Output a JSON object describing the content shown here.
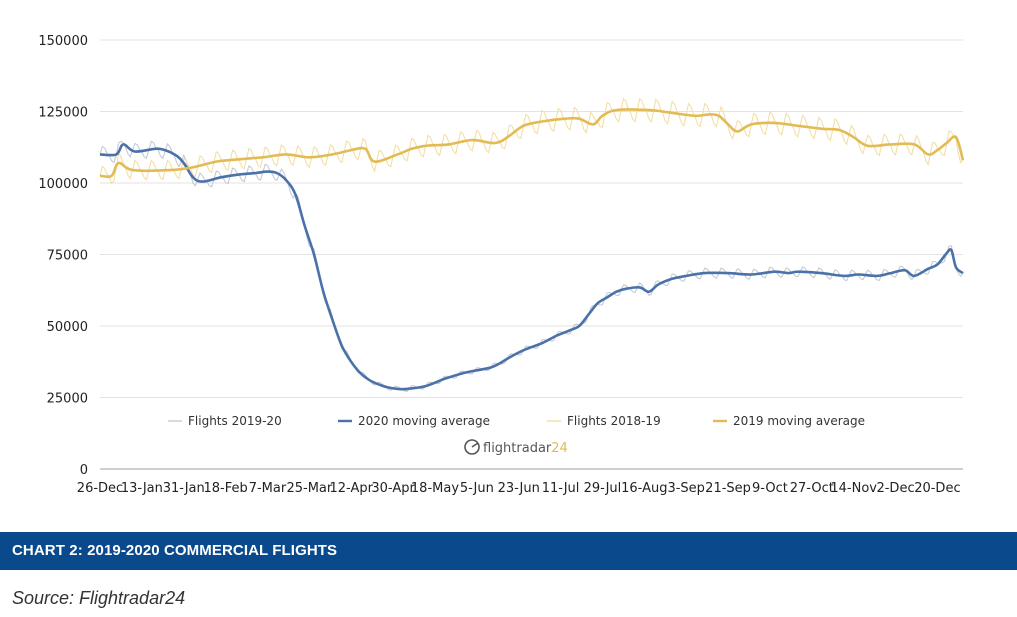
{
  "chart_data": {
    "type": "line",
    "title": "",
    "xlabel": "",
    "ylabel": "",
    "ylim": [
      0,
      150000
    ],
    "yticks": [
      "0",
      "25000",
      "50000",
      "75000",
      "100000",
      "125000",
      "150000"
    ],
    "xticks": [
      "26-Dec",
      "13-Jan",
      "31-Jan",
      "18-Feb",
      "7-Mar",
      "25-Mar",
      "12-Apr",
      "30-Apr",
      "18-May",
      "5-Jun",
      "23-Jun",
      "11-Jul",
      "29-Jul",
      "16-Aug",
      "3-Sep",
      "21-Sep",
      "9-Oct",
      "27-Oct",
      "14-Nov",
      "2-Dec",
      "20-Dec"
    ],
    "xlim": [
      0,
      371
    ],
    "grid": true,
    "legend_position": "bottom",
    "legend": [
      "Flights 2019-20",
      "2020 moving average",
      "Flights 2018-19",
      "2019 moving average"
    ],
    "colors": {
      "flights_2019_20": "#c5cad6",
      "ma_2020": "#4a72a8",
      "flights_2018_19": "#f3dfa4",
      "ma_2019": "#e2bb55"
    },
    "series": [
      {
        "name": "Flights 2019-20",
        "key": "flights_2019_20",
        "style": "thin",
        "base": [
          [
            0,
            110000
          ],
          [
            7,
            110000
          ],
          [
            10,
            113500
          ],
          [
            15,
            111000
          ],
          [
            25,
            112000
          ],
          [
            32,
            110000
          ],
          [
            36,
            107000
          ],
          [
            40,
            102000
          ],
          [
            44,
            100500
          ],
          [
            52,
            102000
          ],
          [
            60,
            103000
          ],
          [
            67,
            103500
          ],
          [
            72,
            104000
          ],
          [
            76,
            103500
          ],
          [
            80,
            101000
          ],
          [
            84,
            96000
          ],
          [
            88,
            85000
          ],
          [
            92,
            75000
          ],
          [
            96,
            62000
          ],
          [
            100,
            52000
          ],
          [
            104,
            43000
          ],
          [
            108,
            37500
          ],
          [
            112,
            33500
          ],
          [
            116,
            31000
          ],
          [
            120,
            29500
          ],
          [
            124,
            28500
          ],
          [
            128,
            28000
          ],
          [
            132,
            28000
          ],
          [
            140,
            29000
          ],
          [
            148,
            31500
          ],
          [
            156,
            33500
          ],
          [
            162,
            34500
          ],
          [
            168,
            35500
          ],
          [
            172,
            37000
          ],
          [
            176,
            39000
          ],
          [
            182,
            41500
          ],
          [
            190,
            44000
          ],
          [
            196,
            46500
          ],
          [
            202,
            48500
          ],
          [
            206,
            50000
          ],
          [
            210,
            54000
          ],
          [
            214,
            58000
          ],
          [
            218,
            60000
          ],
          [
            222,
            62000
          ],
          [
            226,
            63000
          ],
          [
            232,
            63500
          ],
          [
            236,
            62000
          ],
          [
            240,
            64500
          ],
          [
            246,
            66500
          ],
          [
            252,
            67500
          ],
          [
            260,
            68500
          ],
          [
            270,
            68500
          ],
          [
            280,
            68000
          ],
          [
            290,
            69000
          ],
          [
            296,
            68500
          ],
          [
            300,
            69000
          ],
          [
            310,
            68500
          ],
          [
            320,
            67500
          ],
          [
            326,
            68000
          ],
          [
            334,
            67500
          ],
          [
            340,
            68500
          ],
          [
            346,
            69500
          ],
          [
            350,
            67500
          ],
          [
            356,
            70000
          ],
          [
            360,
            71500
          ],
          [
            364,
            75500
          ],
          [
            366,
            76500
          ],
          [
            368,
            70500
          ],
          [
            371,
            68500
          ]
        ],
        "amplitude": 2800
      },
      {
        "name": "2020 moving average",
        "key": "ma_2020",
        "style": "thick",
        "points": [
          [
            0,
            110000
          ],
          [
            7,
            110000
          ],
          [
            10,
            113500
          ],
          [
            15,
            111000
          ],
          [
            25,
            112000
          ],
          [
            32,
            110000
          ],
          [
            36,
            107000
          ],
          [
            40,
            102000
          ],
          [
            44,
            100500
          ],
          [
            52,
            102000
          ],
          [
            60,
            103000
          ],
          [
            67,
            103500
          ],
          [
            72,
            104000
          ],
          [
            76,
            103500
          ],
          [
            80,
            101000
          ],
          [
            84,
            96000
          ],
          [
            88,
            85000
          ],
          [
            92,
            75000
          ],
          [
            96,
            62000
          ],
          [
            100,
            52000
          ],
          [
            104,
            43000
          ],
          [
            108,
            37500
          ],
          [
            112,
            33500
          ],
          [
            116,
            31000
          ],
          [
            120,
            29500
          ],
          [
            124,
            28500
          ],
          [
            128,
            28000
          ],
          [
            132,
            28000
          ],
          [
            140,
            29000
          ],
          [
            148,
            31500
          ],
          [
            156,
            33500
          ],
          [
            162,
            34500
          ],
          [
            168,
            35500
          ],
          [
            172,
            37000
          ],
          [
            176,
            39000
          ],
          [
            182,
            41500
          ],
          [
            190,
            44000
          ],
          [
            196,
            46500
          ],
          [
            202,
            48500
          ],
          [
            206,
            50000
          ],
          [
            210,
            54000
          ],
          [
            214,
            58000
          ],
          [
            218,
            60000
          ],
          [
            222,
            62000
          ],
          [
            226,
            63000
          ],
          [
            232,
            63500
          ],
          [
            236,
            62000
          ],
          [
            240,
            64500
          ],
          [
            246,
            66500
          ],
          [
            252,
            67500
          ],
          [
            260,
            68500
          ],
          [
            270,
            68500
          ],
          [
            280,
            68000
          ],
          [
            290,
            69000
          ],
          [
            296,
            68500
          ],
          [
            300,
            69000
          ],
          [
            310,
            68500
          ],
          [
            320,
            67500
          ],
          [
            326,
            68000
          ],
          [
            334,
            67500
          ],
          [
            340,
            68500
          ],
          [
            346,
            69500
          ],
          [
            350,
            67500
          ],
          [
            356,
            70000
          ],
          [
            360,
            71500
          ],
          [
            364,
            75500
          ],
          [
            366,
            76500
          ],
          [
            368,
            70500
          ],
          [
            371,
            68500
          ]
        ]
      },
      {
        "name": "Flights 2018-19",
        "key": "flights_2018_19",
        "style": "thin",
        "base": [
          [
            0,
            102500
          ],
          [
            5,
            102500
          ],
          [
            8,
            107000
          ],
          [
            14,
            104500
          ],
          [
            30,
            104500
          ],
          [
            40,
            105500
          ],
          [
            50,
            107500
          ],
          [
            56,
            108000
          ],
          [
            70,
            109000
          ],
          [
            80,
            110000
          ],
          [
            90,
            109000
          ],
          [
            100,
            110000
          ],
          [
            108,
            111500
          ],
          [
            114,
            112000
          ],
          [
            118,
            107500
          ],
          [
            128,
            110000
          ],
          [
            134,
            112000
          ],
          [
            140,
            113000
          ],
          [
            150,
            113500
          ],
          [
            160,
            115000
          ],
          [
            170,
            114000
          ],
          [
            176,
            116500
          ],
          [
            182,
            120000
          ],
          [
            190,
            121500
          ],
          [
            200,
            122500
          ],
          [
            206,
            122500
          ],
          [
            212,
            120500
          ],
          [
            216,
            123500
          ],
          [
            222,
            125500
          ],
          [
            236,
            125500
          ],
          [
            246,
            124500
          ],
          [
            256,
            123500
          ],
          [
            262,
            124000
          ],
          [
            266,
            123500
          ],
          [
            270,
            120500
          ],
          [
            274,
            118000
          ],
          [
            280,
            120500
          ],
          [
            290,
            121000
          ],
          [
            300,
            120000
          ],
          [
            310,
            119000
          ],
          [
            318,
            118500
          ],
          [
            324,
            116000
          ],
          [
            330,
            113000
          ],
          [
            340,
            113500
          ],
          [
            350,
            113500
          ],
          [
            356,
            110000
          ],
          [
            360,
            111500
          ],
          [
            364,
            114000
          ],
          [
            368,
            116000
          ],
          [
            371,
            108000
          ]
        ],
        "amplitude": 3500
      },
      {
        "name": "2019 moving average",
        "key": "ma_2019",
        "style": "thick",
        "points": [
          [
            0,
            102500
          ],
          [
            5,
            102500
          ],
          [
            8,
            107000
          ],
          [
            14,
            104500
          ],
          [
            30,
            104500
          ],
          [
            40,
            105500
          ],
          [
            50,
            107500
          ],
          [
            56,
            108000
          ],
          [
            70,
            109000
          ],
          [
            80,
            110000
          ],
          [
            90,
            109000
          ],
          [
            100,
            110000
          ],
          [
            108,
            111500
          ],
          [
            114,
            112000
          ],
          [
            118,
            107500
          ],
          [
            128,
            110000
          ],
          [
            134,
            112000
          ],
          [
            140,
            113000
          ],
          [
            150,
            113500
          ],
          [
            160,
            115000
          ],
          [
            170,
            114000
          ],
          [
            176,
            116500
          ],
          [
            182,
            120000
          ],
          [
            190,
            121500
          ],
          [
            200,
            122500
          ],
          [
            206,
            122500
          ],
          [
            212,
            120500
          ],
          [
            216,
            123500
          ],
          [
            222,
            125500
          ],
          [
            236,
            125500
          ],
          [
            246,
            124500
          ],
          [
            256,
            123500
          ],
          [
            262,
            124000
          ],
          [
            266,
            123500
          ],
          [
            270,
            120500
          ],
          [
            274,
            118000
          ],
          [
            280,
            120500
          ],
          [
            290,
            121000
          ],
          [
            300,
            120000
          ],
          [
            310,
            119000
          ],
          [
            318,
            118500
          ],
          [
            324,
            116000
          ],
          [
            330,
            113000
          ],
          [
            340,
            113500
          ],
          [
            350,
            113500
          ],
          [
            356,
            110000
          ],
          [
            360,
            111500
          ],
          [
            364,
            114000
          ],
          [
            368,
            116000
          ],
          [
            371,
            108000
          ]
        ]
      }
    ]
  },
  "watermark": {
    "text": "flightradar24",
    "icon": "flightradar24-logo-icon"
  },
  "caption": {
    "text": "CHART 2: 2019-2020 COMMERCIAL FLIGHTS",
    "color": "#0a4a8c"
  },
  "source": {
    "text": "Source: Flightradar24"
  }
}
